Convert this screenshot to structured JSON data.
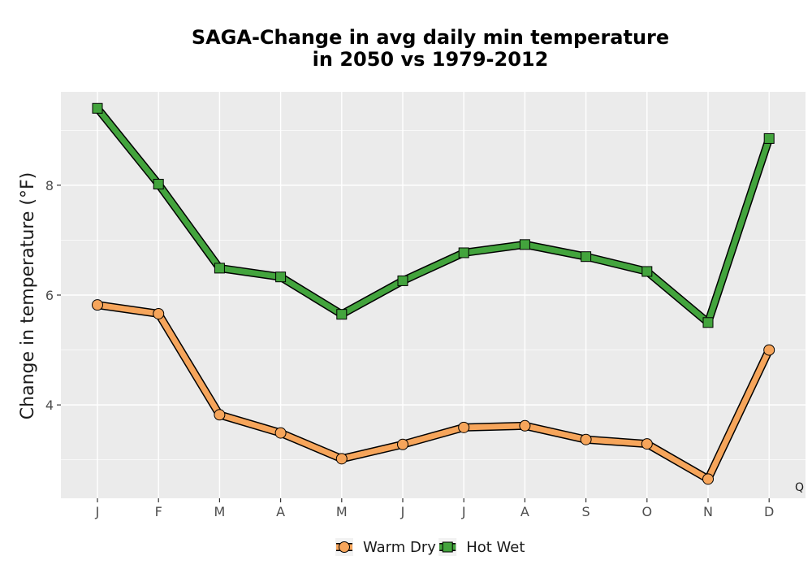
{
  "chart_data": {
    "type": "line",
    "title_line1": "SAGA-Change in avg daily min temperature",
    "title_line2": "in 2050 vs 1979-2012",
    "ylabel": "Change in temperature (°F)",
    "xlabel": "",
    "categories": [
      "J",
      "F",
      "M",
      "A",
      "M",
      "J",
      "J",
      "A",
      "S",
      "O",
      "N",
      "D"
    ],
    "ylim": [
      2.3,
      9.7
    ],
    "yticks": [
      4,
      6,
      8
    ],
    "grid": true,
    "legend_position": "bottom",
    "corner_label": "Q",
    "series": [
      {
        "name": "Warm Dry",
        "marker": "circle",
        "fill": "#F6A55B",
        "values": [
          5.82,
          5.66,
          3.82,
          3.49,
          3.02,
          3.28,
          3.59,
          3.62,
          3.37,
          3.29,
          2.65,
          5.0
        ]
      },
      {
        "name": "Hot Wet",
        "marker": "square",
        "fill": "#43A43D",
        "values": [
          9.4,
          8.02,
          6.49,
          6.33,
          5.65,
          6.26,
          6.77,
          6.92,
          6.7,
          6.43,
          5.5,
          8.85
        ]
      }
    ]
  }
}
